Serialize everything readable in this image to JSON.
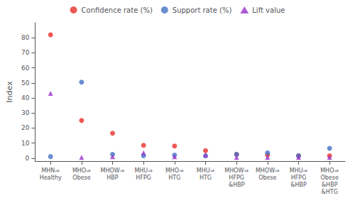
{
  "chart_data": {
    "type": "scatter",
    "categories": [
      "MHN⇒\nHealthy",
      "MHO⇒\nObese",
      "MHOW⇒\nHBP",
      "MHU⇒\nHFPG",
      "MHO⇒\nHTG",
      "MHU⇒\nHTG",
      "MHOW⇒\nHFPG\n&HBP",
      "MHOW⇒\nObese",
      "MHU⇒\nHFPG\n&HBP",
      "MHO⇒\nObese\n&HBP\n&HTG"
    ],
    "series": [
      {
        "name": "Confidence rate (%)",
        "color": "#e8302a",
        "marker": "circle",
        "values": [
          82,
          25,
          16.5,
          8.5,
          8,
          5,
          2.5,
          2,
          1.5,
          1.5
        ]
      },
      {
        "name": "Support rate (%)",
        "color": "#4472c4",
        "marker": "circle",
        "values": [
          1,
          50.5,
          2.5,
          1.5,
          2,
          1.5,
          2.5,
          3.5,
          1.5,
          6.5
        ]
      },
      {
        "name": "Lift value",
        "color": "#9932cc",
        "marker": "triangle",
        "values": [
          43,
          0.5,
          1,
          3.5,
          1,
          2,
          0.5,
          0.5,
          0.5,
          0.5
        ]
      }
    ],
    "ylabel": "Index",
    "ylim": [
      -2,
      90
    ],
    "yticks": [
      0,
      10,
      20,
      30,
      40,
      50,
      60,
      70,
      80
    ],
    "grid": false,
    "legend": "upper center"
  }
}
